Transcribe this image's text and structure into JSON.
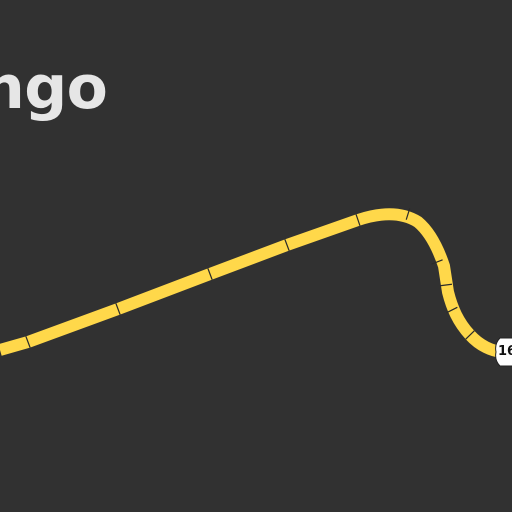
{
  "map": {
    "background_color": "#313131",
    "place_label": "ngo",
    "road": {
      "class": "highway",
      "color": "#ffd84a",
      "tick_color": "#2a2a2a"
    },
    "route_shield": {
      "number": "16",
      "icon": "route-shield-icon",
      "fill": "#ffffff"
    }
  }
}
